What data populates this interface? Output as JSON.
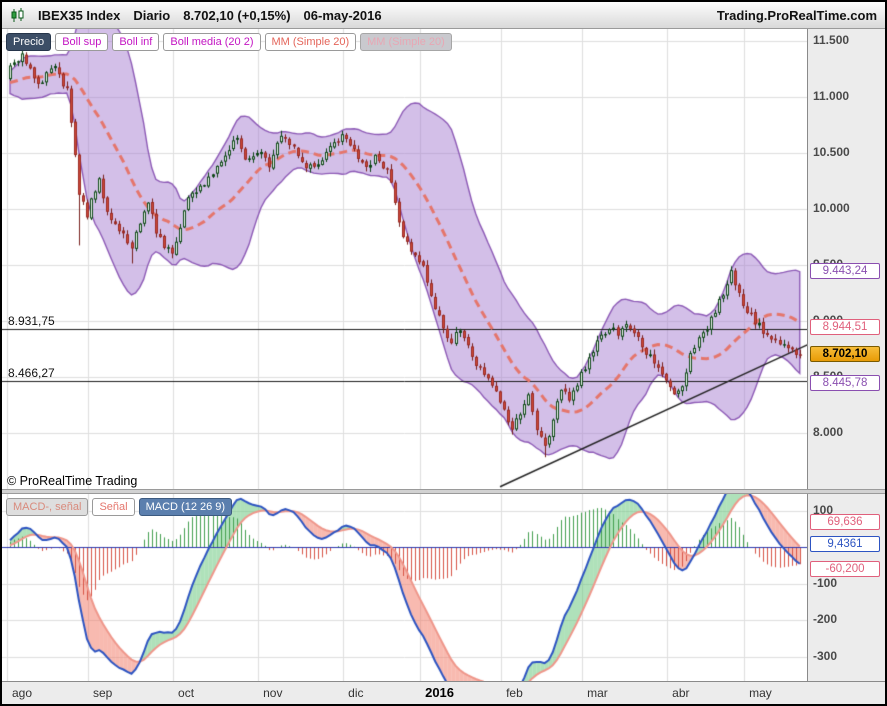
{
  "header": {
    "instrument": "IBEX35 Index",
    "timeframe": "Diario",
    "last_trade": "8.702,10 (+0,15%)",
    "date": "06-may-2016",
    "site": "Trading.ProRealTime.com"
  },
  "price_pane": {
    "toolbar": [
      {
        "label": "Precio",
        "style": "dark"
      },
      {
        "label": "Boll sup",
        "style": "magenta"
      },
      {
        "label": "Boll inf",
        "style": "magenta"
      },
      {
        "label": "Boll media (20 2)",
        "style": "magenta"
      },
      {
        "label": "MM (Simple 20)",
        "style": "salmon"
      },
      {
        "label": "MM (Simple 20)",
        "style": "disabled"
      }
    ],
    "copyright": "© ProRealTime Trading",
    "axis_ticks": [
      {
        "value": 11500,
        "label": "11.500"
      },
      {
        "value": 11000,
        "label": "11.000"
      },
      {
        "value": 10500,
        "label": "10.500"
      },
      {
        "value": 10000,
        "label": "10.000"
      },
      {
        "value": 9500,
        "label": "9.500"
      },
      {
        "value": 9000,
        "label": "9.000"
      },
      {
        "value": 8500,
        "label": "8.500"
      },
      {
        "value": 8000,
        "label": "8.000"
      }
    ],
    "markers": [
      {
        "name": "boll-sup",
        "value": 9443.24,
        "label": "9.443,24",
        "color": "#8a4fb0"
      },
      {
        "name": "sma20",
        "value": 8944.51,
        "label": "8.944,51",
        "color": "#e0607c"
      },
      {
        "name": "last-price",
        "value": 8702.1,
        "label": "8.702,10",
        "color": "#000000",
        "style": "current"
      },
      {
        "name": "boll-inf",
        "value": 8445.78,
        "label": "8.445,78",
        "color": "#8a4fb0"
      }
    ],
    "annotations": [
      {
        "price": 8931.75,
        "label": "8.931,75"
      },
      {
        "price": 8466.27,
        "label": "8.466,27"
      }
    ]
  },
  "macd_pane": {
    "toolbar": [
      {
        "label": "MACD-, señal",
        "style": "hist"
      },
      {
        "label": "Señal",
        "style": "senal"
      },
      {
        "label": "MACD (12 26 9)",
        "style": "selected"
      }
    ],
    "axis_ticks": [
      {
        "value": 100,
        "label": "100"
      },
      {
        "value": 0,
        "label": "0"
      },
      {
        "value": -100,
        "label": "-100"
      },
      {
        "value": -200,
        "label": "-200"
      },
      {
        "value": -300,
        "label": "-300"
      }
    ],
    "markers": [
      {
        "name": "signal-value",
        "value": 69.636,
        "label": "69,636",
        "color": "#e0607c"
      },
      {
        "name": "macd-value",
        "value": 9.4361,
        "label": "9,4361",
        "color": "#2d54c2"
      },
      {
        "name": "histogram-value",
        "value": -60.2,
        "label": "-60,200",
        "color": "#e0607c"
      }
    ]
  },
  "time_axis": {
    "months": [
      {
        "label": "ago",
        "bold": false
      },
      {
        "label": "sep",
        "bold": false
      },
      {
        "label": "oct",
        "bold": false
      },
      {
        "label": "nov",
        "bold": false
      },
      {
        "label": "dic",
        "bold": false
      },
      {
        "label": "2016",
        "bold": true
      },
      {
        "label": "feb",
        "bold": false
      },
      {
        "label": "mar",
        "bold": false
      },
      {
        "label": "abr",
        "bold": false
      },
      {
        "label": "may",
        "bold": false
      }
    ]
  },
  "chart_data": {
    "type": "candlestick",
    "title": "IBEX35 Index Diario",
    "instrument": "IBEX35 Index",
    "timeframe": "Diario",
    "last_price": 8702.1,
    "change_pct": "+0,15%",
    "session_date": "06-may-2016",
    "indicators": [
      "Bollinger sup/inf/media (20 2)",
      "MM Simple 20",
      "MACD (12 26 9)"
    ],
    "price_axis_range": [
      7490,
      11610
    ],
    "macd_axis_range": [
      -365,
      145
    ],
    "levels": [
      8931.75,
      8466.27
    ],
    "bollinger_last": {
      "upper": 9443.24,
      "media": 8944.51,
      "lower": 8445.78
    },
    "macd_last": {
      "macd": 9.4361,
      "signal": 69.636,
      "histogram": -60.2
    },
    "num_candles": 196,
    "month_boundaries": [
      0,
      20,
      41,
      62,
      83,
      102,
      122,
      142,
      163,
      182
    ],
    "anchors": {
      "idx": [
        0,
        3,
        7,
        11,
        14,
        16,
        17,
        19,
        20,
        22,
        24,
        27,
        30,
        32,
        34,
        36,
        38,
        40,
        42,
        44,
        47,
        50,
        53,
        56,
        58,
        61,
        64,
        67,
        70,
        73,
        76,
        79,
        82,
        85,
        88,
        90,
        93,
        95,
        97,
        100,
        101,
        102,
        104,
        107,
        109,
        111,
        114,
        117,
        120,
        121,
        124,
        126,
        128,
        130,
        132,
        134,
        136,
        138,
        140,
        142,
        145,
        148,
        150,
        152,
        154,
        156,
        158,
        160,
        162,
        164,
        166,
        168,
        170,
        172,
        174,
        176,
        178,
        180,
        181,
        183,
        186,
        189,
        192,
        195
      ],
      "price": [
        11250,
        11400,
        11120,
        11260,
        11050,
        10500,
        10150,
        9950,
        10100,
        10250,
        9950,
        9800,
        9650,
        9900,
        10050,
        9800,
        9650,
        9600,
        9850,
        10100,
        10200,
        10320,
        10500,
        10620,
        10450,
        10520,
        10400,
        10680,
        10550,
        10350,
        10400,
        10550,
        10650,
        10520,
        10350,
        10450,
        10350,
        10050,
        9750,
        9600,
        9550,
        9500,
        9200,
        8950,
        8800,
        8950,
        8700,
        8500,
        8400,
        8300,
        8000,
        8200,
        8350,
        8050,
        7900,
        8100,
        8400,
        8320,
        8450,
        8600,
        8800,
        8950,
        8900,
        8980,
        8900,
        8750,
        8700,
        8550,
        8500,
        8320,
        8450,
        8700,
        8850,
        8950,
        9100,
        9250,
        9420,
        9250,
        9150,
        9050,
        8900,
        8800,
        8750,
        8702
      ]
    },
    "long_wicks": [
      {
        "idx": 17,
        "extend": 420
      },
      {
        "idx": 30,
        "extend": 110
      },
      {
        "idx": 132,
        "extend": 85
      }
    ],
    "trendline": {
      "idx1": 121,
      "price1": 7520,
      "idx2": 197,
      "price2": 8790
    },
    "seed": 20160506
  }
}
